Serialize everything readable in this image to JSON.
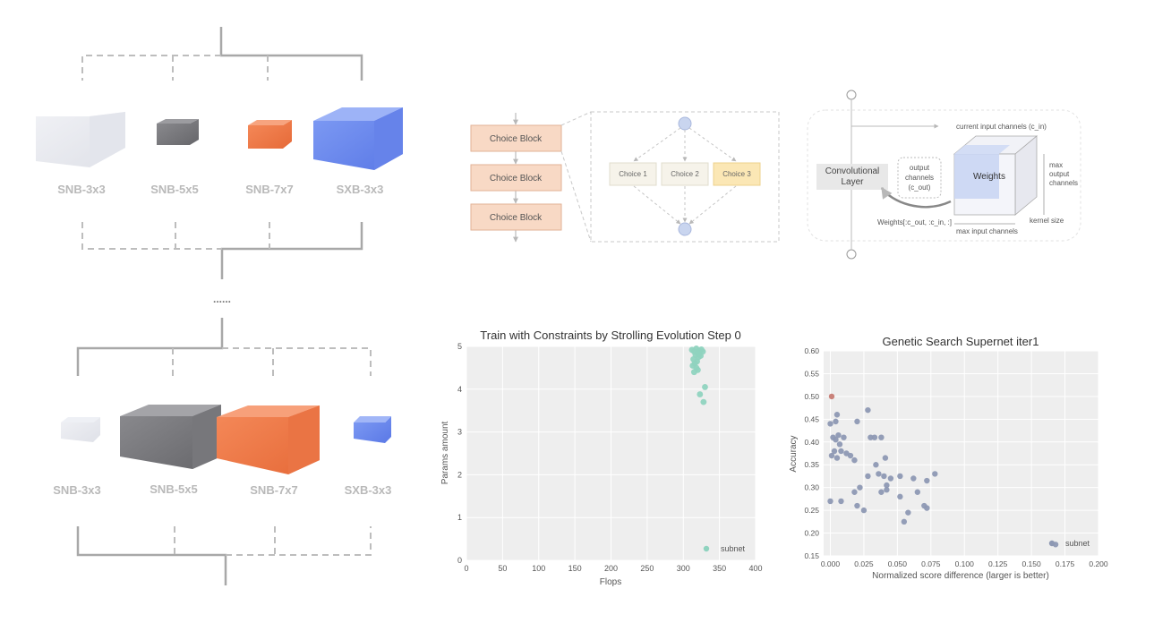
{
  "supernet_top": {
    "blocks": [
      "SNB-3x3",
      "SNB-5x5",
      "SNB-7x7",
      "SXB-3x3"
    ]
  },
  "ellipsis": "......",
  "supernet_bottom": {
    "blocks": [
      "SNB-3x3",
      "SNB-5x5",
      "SNB-7x7",
      "SXB-3x3"
    ]
  },
  "choice_diagram": {
    "blocks": [
      "Choice Block",
      "Choice Block",
      "Choice Block"
    ],
    "choices": [
      "Choice 1",
      "Choice 2",
      "Choice 3"
    ]
  },
  "conv_diagram": {
    "layer_label_1": "Convolutional",
    "layer_label_2": "Layer",
    "current_in": "current input channels (c_in)",
    "output_ch_1": "output",
    "output_ch_2": "channels",
    "output_ch_3": "(c_out)",
    "weights": "Weights",
    "max_out_1": "max",
    "max_out_2": "output",
    "max_out_3": "channels",
    "slice": "Weights[:c_out, :c_in, :]",
    "max_in": "max input channels",
    "kernel": "kernel size"
  },
  "colors": {
    "line": "#a8a8a8",
    "choice_fill": "#f8d9c5",
    "choice_stroke": "#e2b296",
    "node": "#c9d5ef",
    "teal": "#8fd3bf",
    "slate": "#8d98b3",
    "red": "#c9827a",
    "plot_bg": "#eeeeee"
  },
  "chart_data": [
    {
      "type": "scatter",
      "title": "Train with Constraints by Strolling Evolution Step 0",
      "xlabel": "Flops",
      "ylabel": "Params amount",
      "xlim": [
        0,
        400
      ],
      "ylim": [
        0,
        5
      ],
      "xticks": [
        "0",
        "50",
        "100",
        "150",
        "200",
        "250",
        "300",
        "350",
        "400"
      ],
      "yticks": [
        "0",
        "1",
        "2",
        "3",
        "4",
        "5"
      ],
      "legend": "subnet",
      "series": [
        {
          "name": "subnet",
          "points": [
            [
              312,
              4.92
            ],
            [
              315,
              4.88
            ],
            [
              318,
              4.95
            ],
            [
              320,
              4.85
            ],
            [
              322,
              4.9
            ],
            [
              325,
              4.93
            ],
            [
              317,
              4.8
            ],
            [
              321,
              4.75
            ],
            [
              314,
              4.7
            ],
            [
              319,
              4.65
            ],
            [
              316,
              4.6
            ],
            [
              313,
              4.55
            ],
            [
              318,
              4.5
            ],
            [
              320,
              4.45
            ],
            [
              315,
              4.4
            ],
            [
              322,
              4.82
            ],
            [
              327,
              4.88
            ],
            [
              324,
              4.78
            ],
            [
              330,
              4.05
            ],
            [
              323,
              3.88
            ],
            [
              328,
              3.7
            ]
          ]
        }
      ]
    },
    {
      "type": "scatter",
      "title": "Genetic Search Supernet iter1",
      "xlabel": "Normalized score difference (larger is better)",
      "ylabel": "Accuracy",
      "xlim": [
        -0.005,
        0.2
      ],
      "ylim": [
        0.15,
        0.6
      ],
      "xticks": [
        "0.000",
        "0.025",
        "0.050",
        "0.075",
        "0.100",
        "0.125",
        "0.150",
        "0.175",
        "0.200"
      ],
      "yticks": [
        "0.15",
        "0.20",
        "0.25",
        "0.30",
        "0.35",
        "0.40",
        "0.45",
        "0.50",
        "0.55",
        "0.60"
      ],
      "legend": "subnet",
      "highlight": [
        0.001,
        0.5
      ],
      "series": [
        {
          "name": "subnet",
          "points": [
            [
              0.0,
              0.44
            ],
            [
              0.004,
              0.445
            ],
            [
              0.005,
              0.46
            ],
            [
              0.002,
              0.41
            ],
            [
              0.004,
              0.405
            ],
            [
              0.006,
              0.415
            ],
            [
              0.003,
              0.38
            ],
            [
              0.005,
              0.365
            ],
            [
              0.001,
              0.37
            ],
            [
              0.007,
              0.395
            ],
            [
              0.008,
              0.38
            ],
            [
              0.01,
              0.41
            ],
            [
              0.012,
              0.375
            ],
            [
              0.015,
              0.37
            ],
            [
              0.018,
              0.36
            ],
            [
              0.02,
              0.445
            ],
            [
              0.028,
              0.47
            ],
            [
              0.03,
              0.41
            ],
            [
              0.033,
              0.41
            ],
            [
              0.038,
              0.41
            ],
            [
              0.034,
              0.35
            ],
            [
              0.041,
              0.365
            ],
            [
              0.036,
              0.33
            ],
            [
              0.028,
              0.325
            ],
            [
              0.04,
              0.325
            ],
            [
              0.045,
              0.32
            ],
            [
              0.042,
              0.305
            ],
            [
              0.038,
              0.29
            ],
            [
              0.042,
              0.295
            ],
            [
              0.052,
              0.325
            ],
            [
              0.062,
              0.32
            ],
            [
              0.072,
              0.315
            ],
            [
              0.078,
              0.33
            ],
            [
              0.052,
              0.28
            ],
            [
              0.065,
              0.29
            ],
            [
              0.07,
              0.26
            ],
            [
              0.072,
              0.255
            ],
            [
              0.058,
              0.245
            ],
            [
              0.055,
              0.225
            ],
            [
              0.018,
              0.29
            ],
            [
              0.022,
              0.3
            ],
            [
              0.02,
              0.26
            ],
            [
              0.025,
              0.25
            ],
            [
              0.0,
              0.27
            ],
            [
              0.008,
              0.27
            ],
            [
              0.168,
              0.175
            ]
          ]
        }
      ]
    }
  ]
}
